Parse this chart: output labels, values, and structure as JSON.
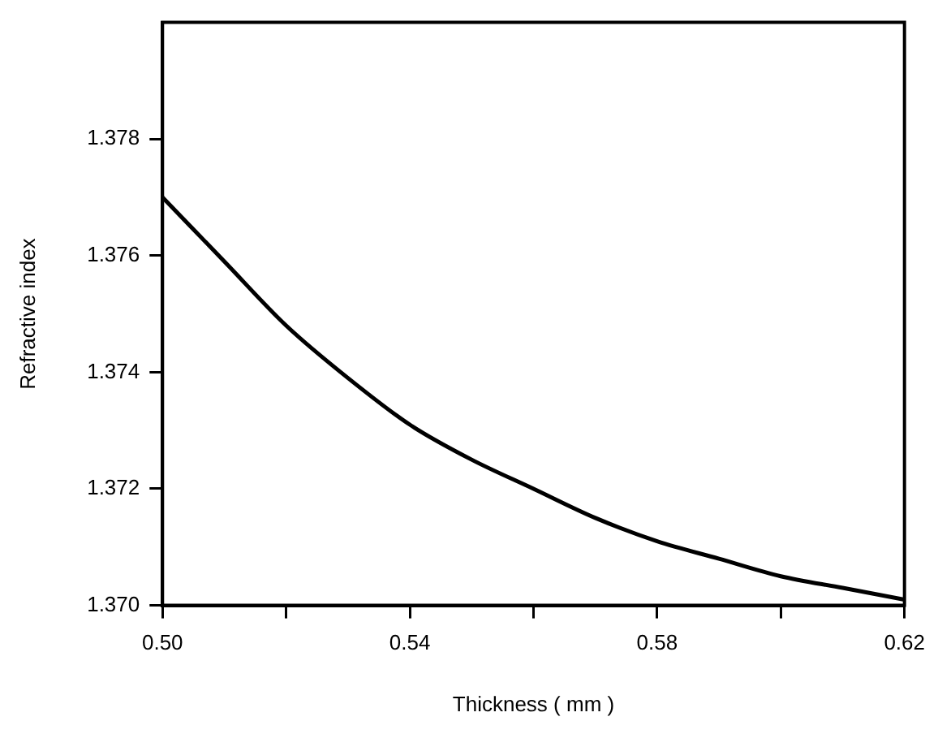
{
  "chart_data": {
    "type": "line",
    "xlabel": "Thickness ( mm )",
    "ylabel": "Refractive index",
    "x": [
      0.5,
      0.51,
      0.52,
      0.53,
      0.54,
      0.55,
      0.56,
      0.57,
      0.58,
      0.59,
      0.6,
      0.61,
      0.62
    ],
    "series": [
      {
        "color": "#000000",
        "values": [
          1.377,
          1.3759,
          1.3748,
          1.3739,
          1.3731,
          1.3725,
          1.372,
          1.3715,
          1.3711,
          1.3708,
          1.3705,
          1.3703,
          1.3701
        ]
      }
    ],
    "xlim": [
      0.5,
      0.62
    ],
    "xticks": [
      {
        "value": 0.5,
        "label": "0.50"
      },
      {
        "value": 0.52,
        "label": null
      },
      {
        "value": 0.54,
        "label": "0.54"
      },
      {
        "value": 0.56,
        "label": null
      },
      {
        "value": 0.58,
        "label": "0.58"
      },
      {
        "value": 0.6,
        "label": null
      },
      {
        "value": 0.62,
        "label": "0.62"
      }
    ],
    "ylim": [
      1.37,
      1.38
    ],
    "yticks": [
      {
        "value": 1.37,
        "label": "1.370"
      },
      {
        "value": 1.372,
        "label": "1.372"
      },
      {
        "value": 1.374,
        "label": "1.374"
      },
      {
        "value": 1.376,
        "label": "1.376"
      },
      {
        "value": 1.378,
        "label": "1.378"
      }
    ],
    "grid": false,
    "legend": false,
    "marker": "none",
    "line_style": "solid"
  }
}
